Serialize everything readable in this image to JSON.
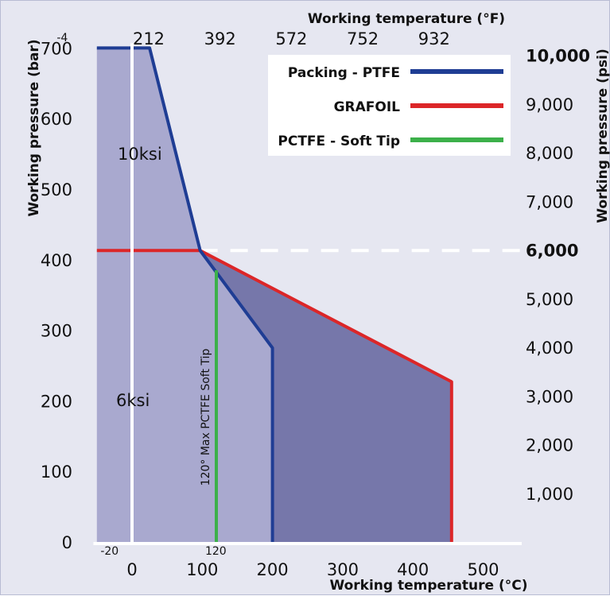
{
  "chart_data": {
    "type": "area",
    "x_top_label": "Working temperature (°F)",
    "x_bottom_label": "Working temperature (°C)",
    "y_left_label": "Working pressure (bar)",
    "y_right_label": "Working pressure (psi)",
    "x_celsius_ticks": [
      "0",
      "100",
      "200",
      "300",
      "400",
      "500"
    ],
    "x_celsius_tick_values": [
      0,
      100,
      200,
      300,
      400,
      500
    ],
    "x_fahrenheit_ticks": [
      "212",
      "392",
      "572",
      "752",
      "932"
    ],
    "x_fahrenheit_tick_values": [
      212,
      392,
      572,
      752,
      932
    ],
    "x_extra_labels": {
      "minus20": "-20",
      "minus4": "-4",
      "at120": "120"
    },
    "y_bar_ticks": [
      "0",
      "100",
      "200",
      "300",
      "400",
      "500",
      "600",
      "700"
    ],
    "y_bar_tick_values": [
      0,
      100,
      200,
      300,
      400,
      500,
      600,
      700
    ],
    "y_psi_ticks": [
      "1,000",
      "2,000",
      "3,000",
      "4,000",
      "5,000",
      "6,000",
      "7,000",
      "8,000",
      "9,000",
      "10,000"
    ],
    "y_psi_tick_values": [
      1000,
      2000,
      3000,
      4000,
      5000,
      6000,
      7000,
      8000,
      9000,
      10000
    ],
    "y_psi_highlight": [
      "6,000",
      "10,000"
    ],
    "xlim": [
      -55,
      555
    ],
    "ylim": [
      0,
      700
    ],
    "series": [
      {
        "name": "Packing - PTFE",
        "color": "#1f3d94",
        "points": [
          [
            -50,
            700
          ],
          [
            25,
            700
          ],
          [
            97,
            413
          ],
          [
            200,
            275
          ],
          [
            200,
            0
          ]
        ]
      },
      {
        "name": "GRAFOIL",
        "color": "#dc2628",
        "points": [
          [
            -50,
            413
          ],
          [
            97,
            413
          ],
          [
            455,
            227
          ],
          [
            455,
            0
          ]
        ]
      },
      {
        "name": "PCTFE - Soft Tip",
        "color": "#3cb04a",
        "points": [
          [
            120,
            385
          ],
          [
            120,
            0
          ]
        ]
      }
    ],
    "reference_line": {
      "y_bar": 413,
      "label": "6,000",
      "style": "dashed",
      "color": "#ffffff"
    },
    "region_labels": [
      "10ksi",
      "6ksi"
    ],
    "annotation": "120° Max PCTFE Soft Tip",
    "colors": {
      "background": "#e6e7f1",
      "light_fill": "#a9a9cf",
      "dark_fill": "#7677aa",
      "accent_red": "#dc2628"
    },
    "legend_position": "top-right",
    "grid": false
  }
}
